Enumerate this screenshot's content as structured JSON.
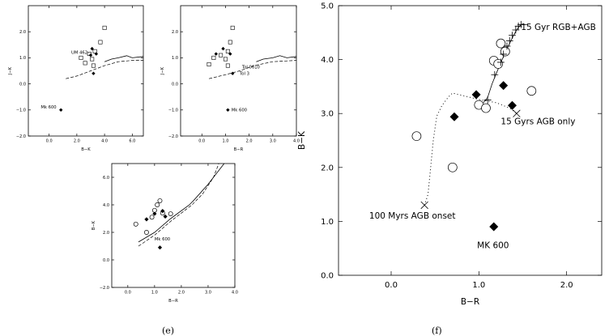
{
  "panels": [
    {
      "label": "(e)",
      "plots": [
        {
          "type": "scatter",
          "xlabel": "B−K",
          "ylabel": "J−K",
          "xlim": [
            -1.5,
            6.8
          ],
          "ylim": [
            -2.0,
            3.0
          ],
          "xticks": [
            0.0,
            2.0,
            4.0,
            6.0
          ],
          "xticklabels": [
            "0.0",
            "2.0",
            "4.0",
            "6.0"
          ],
          "yticks": [
            -2.0,
            -1.0,
            0.0,
            1.0,
            2.0
          ],
          "yticklabels": [
            "−2.0",
            "−1.0",
            "0.0",
            "1.0",
            "2.0"
          ],
          "annotations": [
            {
              "text": "UM 462",
              "x": 1.6,
              "y": 1.15
            },
            {
              "text": "Mk 600",
              "x": -0.6,
              "y": -0.95
            }
          ],
          "open_squares": [
            [
              4.0,
              2.15
            ],
            [
              3.7,
              1.6
            ],
            [
              3.3,
              1.25
            ],
            [
              2.9,
              1.15
            ],
            [
              3.1,
              0.95
            ],
            [
              2.3,
              1.0
            ],
            [
              2.6,
              0.8
            ],
            [
              3.2,
              0.7
            ]
          ],
          "filled_diamonds": [
            [
              3.1,
              1.35
            ],
            [
              3.4,
              1.15
            ],
            [
              3.0,
              1.1
            ],
            [
              3.2,
              0.4
            ],
            [
              0.85,
              -1.0
            ]
          ],
          "solid_curve": [
            [
              4.0,
              0.85
            ],
            [
              4.5,
              0.95
            ],
            [
              5.0,
              1.0
            ],
            [
              5.6,
              1.08
            ],
            [
              6.0,
              1.0
            ],
            [
              6.8,
              1.05
            ]
          ],
          "dashed_curve": [
            [
              1.2,
              0.2
            ],
            [
              2.0,
              0.3
            ],
            [
              3.0,
              0.5
            ],
            [
              4.0,
              0.7
            ],
            [
              5.0,
              0.85
            ],
            [
              6.0,
              0.9
            ],
            [
              6.8,
              0.9
            ]
          ]
        },
        {
          "type": "scatter",
          "xlabel": "B−R",
          "ylabel": "J−K",
          "xlim": [
            -0.9,
            4.0
          ],
          "ylim": [
            -2.0,
            3.0
          ],
          "xticks": [
            0.0,
            1.0,
            2.0,
            3.0,
            4.0
          ],
          "xticklabels": [
            "0.0",
            "1.0",
            "2.0",
            "3.0",
            "4.0"
          ],
          "yticks": [
            -2.0,
            -1.0,
            0.0,
            1.0,
            2.0
          ],
          "yticklabels": [
            "−2.0",
            "−1.0",
            "0.0",
            "1.0",
            "2.0"
          ],
          "annotations": [
            {
              "text": "Tol 0610",
              "x": 1.7,
              "y": 0.6
            },
            {
              "text": "Tol 3",
              "x": 1.6,
              "y": 0.35
            },
            {
              "text": "Mk 600",
              "x": 1.25,
              "y": -1.05
            }
          ],
          "open_squares": [
            [
              1.3,
              2.15
            ],
            [
              1.2,
              1.6
            ],
            [
              1.1,
              1.25
            ],
            [
              0.8,
              1.1
            ],
            [
              1.0,
              0.95
            ],
            [
              0.3,
              0.75
            ],
            [
              0.5,
              1.0
            ],
            [
              1.1,
              0.7
            ]
          ],
          "filled_diamonds": [
            [
              0.9,
              1.35
            ],
            [
              1.2,
              1.15
            ],
            [
              0.6,
              1.15
            ],
            [
              1.3,
              0.4
            ],
            [
              1.1,
              -1.0
            ]
          ],
          "solid_curve": [
            [
              2.3,
              0.85
            ],
            [
              2.6,
              0.95
            ],
            [
              3.0,
              1.0
            ],
            [
              3.3,
              1.08
            ],
            [
              3.6,
              1.0
            ],
            [
              4.0,
              1.05
            ]
          ],
          "dashed_curve": [
            [
              0.3,
              0.2
            ],
            [
              1.0,
              0.35
            ],
            [
              1.6,
              0.5
            ],
            [
              2.2,
              0.7
            ],
            [
              3.0,
              0.85
            ],
            [
              4.0,
              0.9
            ]
          ]
        },
        {
          "type": "scatter",
          "xlabel": "B−R",
          "ylabel": "B−K",
          "xlim": [
            -0.6,
            4.0
          ],
          "ylim": [
            -2.0,
            7.0
          ],
          "xticks": [
            0.0,
            1.0,
            2.0,
            3.0,
            4.0
          ],
          "xticklabels": [
            "0.0",
            "1.0",
            "2.0",
            "3.0",
            "4.0"
          ],
          "yticks": [
            -2.0,
            0.0,
            2.0,
            4.0,
            6.0
          ],
          "yticklabels": [
            "−2.0",
            "0.0",
            "2.0",
            "4.0",
            "6.0"
          ],
          "annotations": [
            {
              "text": "Mk 600",
              "x": 1.0,
              "y": 1.4
            }
          ],
          "open_circles": [
            [
              1.2,
              4.3
            ],
            [
              1.1,
              4.0
            ],
            [
              1.0,
              3.6
            ],
            [
              1.3,
              3.4
            ],
            [
              1.6,
              3.35
            ],
            [
              0.3,
              2.6
            ],
            [
              0.7,
              2.0
            ],
            [
              0.9,
              3.1
            ]
          ],
          "filled_diamonds": [
            [
              1.0,
              3.35
            ],
            [
              1.3,
              3.55
            ],
            [
              0.7,
              2.95
            ],
            [
              1.4,
              3.15
            ],
            [
              1.2,
              0.9
            ]
          ],
          "solid_curve": [
            [
              0.4,
              1.3
            ],
            [
              1.0,
              2.0
            ],
            [
              1.6,
              3.0
            ],
            [
              2.3,
              4.0
            ],
            [
              2.5,
              4.4
            ],
            [
              3.0,
              5.5
            ],
            [
              3.6,
              7.0
            ]
          ],
          "dashed_curve": [
            [
              0.4,
              1.0
            ],
            [
              1.0,
              1.8
            ],
            [
              1.6,
              2.8
            ],
            [
              2.4,
              4.0
            ],
            [
              2.8,
              4.8
            ],
            [
              3.2,
              6.0
            ],
            [
              3.4,
              7.0
            ]
          ]
        }
      ]
    },
    {
      "label": "(f)",
      "plots": [
        {
          "type": "scatter",
          "xlabel": "B−R",
          "ylabel": "B−K",
          "xlim": [
            -0.6,
            2.4
          ],
          "ylim": [
            0.0,
            5.0
          ],
          "xticks": [
            0.0,
            1.0,
            2.0
          ],
          "xticklabels": [
            "0.0",
            "1.0",
            "2.0"
          ],
          "yticks": [
            0.0,
            1.0,
            2.0,
            3.0,
            4.0,
            5.0
          ],
          "yticklabels": [
            "0.0",
            "1.0",
            "2.0",
            "3.0",
            "4.0",
            "5.0"
          ],
          "annotations": [
            {
              "text": "15 Gyr RGB+AGB",
              "x": 1.48,
              "y": 4.55
            },
            {
              "text": "15 Gyrs AGB only",
              "x": 1.25,
              "y": 2.8
            },
            {
              "text": "100 Myrs AGB onset",
              "x": -0.25,
              "y": 1.05
            },
            {
              "text": "MK 600",
              "x": 0.98,
              "y": 0.5
            }
          ],
          "open_circles": [
            [
              1.25,
              4.3
            ],
            [
              1.3,
              4.15
            ],
            [
              1.17,
              3.98
            ],
            [
              1.22,
              3.92
            ],
            [
              1.6,
              3.42
            ],
            [
              1.0,
              3.16
            ],
            [
              1.08,
              3.1
            ],
            [
              0.29,
              2.58
            ],
            [
              0.7,
              2.0
            ]
          ],
          "filled_diamonds": [
            [
              0.97,
              3.35
            ],
            [
              1.28,
              3.52
            ],
            [
              0.72,
              2.94
            ],
            [
              1.38,
              3.15
            ],
            [
              1.17,
              0.9
            ]
          ],
          "plus_markers": [
            [
              1.1,
              3.25
            ],
            [
              1.18,
              3.72
            ],
            [
              1.25,
              3.95
            ],
            [
              1.28,
              4.1
            ],
            [
              1.32,
              4.25
            ],
            [
              1.35,
              4.35
            ],
            [
              1.38,
              4.45
            ],
            [
              1.42,
              4.55
            ],
            [
              1.45,
              4.62
            ],
            [
              1.48,
              4.65
            ]
          ],
          "x_markers": [
            [
              0.38,
              1.3
            ],
            [
              1.43,
              3.0
            ]
          ],
          "solid_curve": [
            [
              1.05,
              3.2
            ],
            [
              1.1,
              3.3
            ],
            [
              1.15,
              3.55
            ],
            [
              1.2,
              3.75
            ],
            [
              1.26,
              3.98
            ],
            [
              1.32,
              4.2
            ],
            [
              1.38,
              4.4
            ],
            [
              1.43,
              4.55
            ],
            [
              1.48,
              4.65
            ],
            [
              1.55,
              4.65
            ]
          ],
          "dotted_curve": [
            [
              0.38,
              1.3
            ],
            [
              0.42,
              1.5
            ],
            [
              0.45,
              2.0
            ],
            [
              0.48,
              2.5
            ],
            [
              0.52,
              2.95
            ],
            [
              0.58,
              3.15
            ],
            [
              0.65,
              3.3
            ],
            [
              0.7,
              3.38
            ],
            [
              0.85,
              3.32
            ],
            [
              1.0,
              3.26
            ],
            [
              1.2,
              3.2
            ],
            [
              1.35,
              3.1
            ],
            [
              1.43,
              3.0
            ]
          ]
        }
      ]
    }
  ]
}
